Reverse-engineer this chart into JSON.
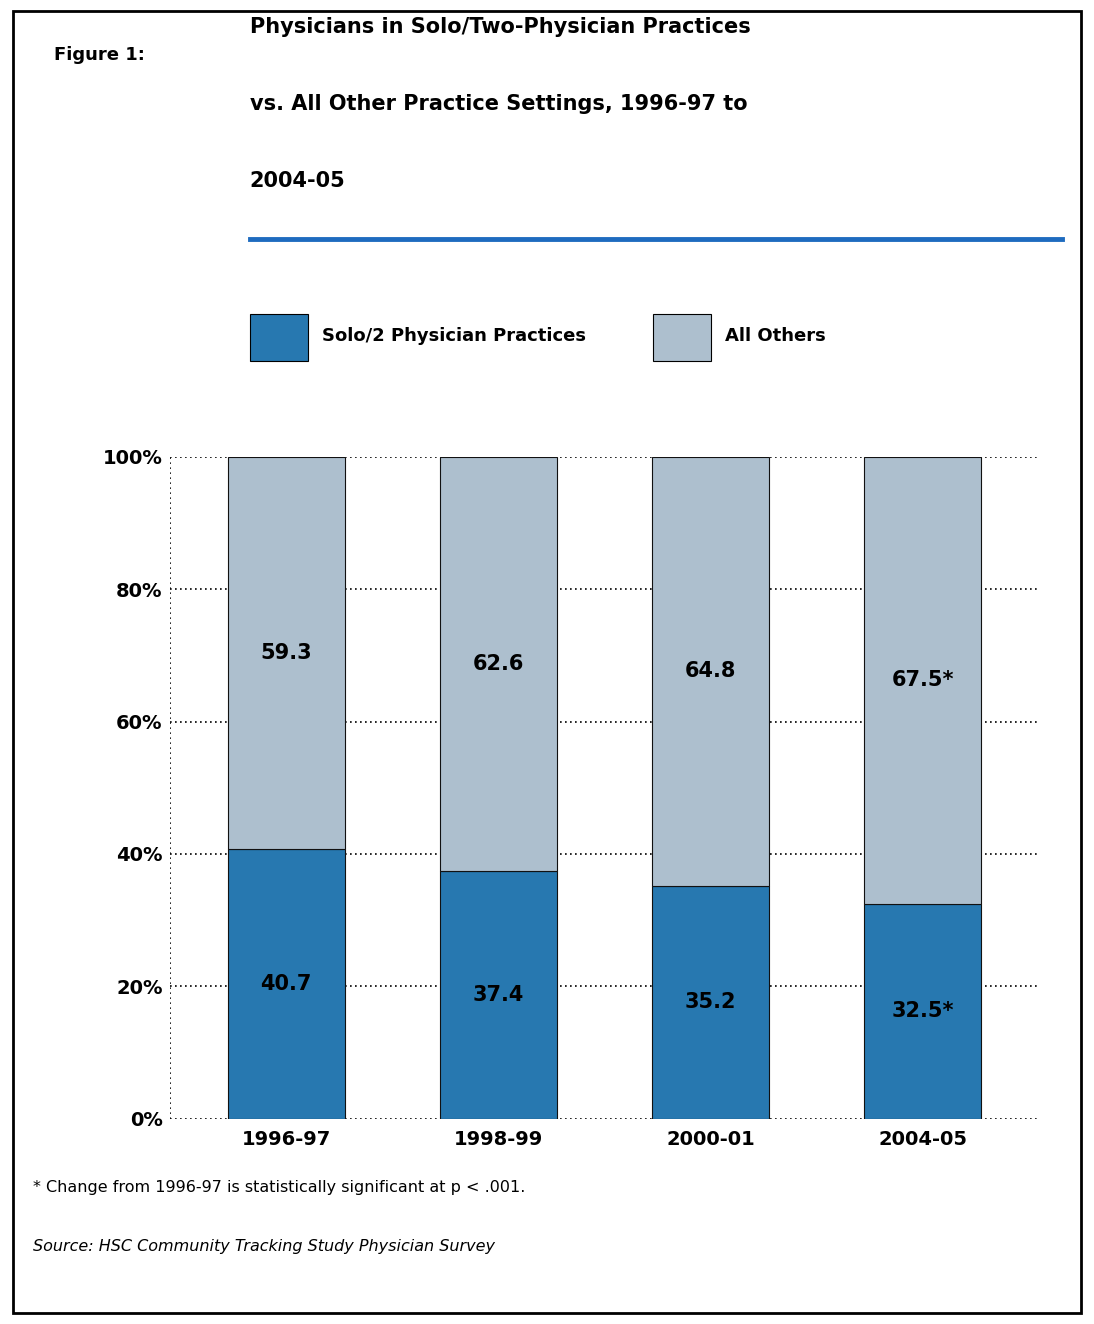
{
  "title_label": "Figure 1:",
  "title_main_line1": "Physicians in Solo/Two-Physician Practices",
  "title_main_line2": "vs. All Other Practice Settings, 1996-97 to",
  "title_main_line3": "2004-05",
  "categories": [
    "1996-97",
    "1998-99",
    "2000-01",
    "2004-05"
  ],
  "solo_values": [
    40.7,
    37.4,
    35.2,
    32.5
  ],
  "others_values": [
    59.3,
    62.6,
    64.8,
    67.5
  ],
  "solo_labels": [
    "40.7",
    "37.4",
    "35.2",
    "32.5*"
  ],
  "others_labels": [
    "59.3",
    "62.6",
    "64.8",
    "67.5*"
  ],
  "solo_color": "#2778B0",
  "others_color": "#ADBFCE",
  "bar_edge_color": "#111111",
  "legend_solo": "Solo/2 Physician Practices",
  "legend_others": "All Others",
  "yticks": [
    0,
    20,
    40,
    60,
    80,
    100
  ],
  "ytick_labels": [
    "0%",
    "20%",
    "40%",
    "60%",
    "80%",
    "100%"
  ],
  "footnote1": "* Change from 1996-97 is statistically significant at p < .001.",
  "footnote2": "Source: HSC Community Tracking Study Physician Survey",
  "separator_color": "#1E6BBF",
  "background_color": "#FFFFFF",
  "text_color": "#000000",
  "bar_width": 0.55
}
